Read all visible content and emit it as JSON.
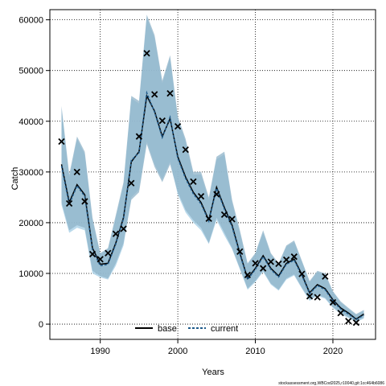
{
  "chart_data": {
    "type": "line",
    "title": "",
    "xlabel": "Years",
    "ylabel": "Catch",
    "xlim": [
      1983.5,
      2025.5
    ],
    "ylim": [
      -3000,
      62000
    ],
    "grid": true,
    "x_ticks": [
      1990,
      2000,
      2010,
      2020
    ],
    "y_ticks": [
      0,
      10000,
      20000,
      30000,
      40000,
      50000,
      60000
    ],
    "legend": {
      "position": "bottom-center",
      "entries": [
        "base",
        "current"
      ]
    },
    "colors": {
      "band": "#8fb3c8",
      "band_outer": "#a8cfe6",
      "base": "#000000",
      "current": "#1f5a8a",
      "observed": "#000000",
      "grid": "#000000"
    },
    "years": [
      1985,
      1986,
      1987,
      1988,
      1989,
      1990,
      1991,
      1992,
      1993,
      1994,
      1995,
      1996,
      1997,
      1998,
      1999,
      2000,
      2001,
      2002,
      2003,
      2004,
      2005,
      2006,
      2007,
      2008,
      2009,
      2010,
      2011,
      2012,
      2013,
      2014,
      2015,
      2016,
      2017,
      2018,
      2019,
      2020,
      2021,
      2022,
      2023,
      2024
    ],
    "series": [
      {
        "name": "base",
        "values": [
          31500,
          24000,
          27500,
          25500,
          15000,
          11800,
          12000,
          16000,
          21000,
          32000,
          34000,
          45000,
          42000,
          37000,
          40500,
          33000,
          29000,
          26000,
          24000,
          20500,
          27000,
          23000,
          19500,
          14000,
          9000,
          11000,
          13500,
          11000,
          9500,
          12000,
          12800,
          9800,
          6200,
          7800,
          7000,
          4800,
          3200,
          2200,
          1000,
          2000
        ],
        "lower": [
          24000,
          18500,
          19500,
          19000,
          10500,
          9500,
          9000,
          12000,
          16000,
          24500,
          26000,
          35500,
          31000,
          28000,
          31500,
          26000,
          22500,
          20500,
          19000,
          16000,
          21000,
          18000,
          15000,
          11000,
          7000,
          8500,
          10500,
          8000,
          6800,
          9000,
          9800,
          7200,
          4800,
          5800,
          5200,
          3400,
          2200,
          1400,
          500,
          1300
        ],
        "upper": [
          43000,
          29500,
          37000,
          34000,
          21000,
          14000,
          15000,
          21500,
          28000,
          45000,
          44000,
          61000,
          57000,
          48000,
          53000,
          41000,
          36500,
          30000,
          30000,
          25000,
          33000,
          34000,
          24500,
          18500,
          12000,
          14000,
          18500,
          14000,
          12000,
          15500,
          16500,
          12500,
          8500,
          10500,
          10000,
          6500,
          4500,
          3200,
          2000,
          2800
        ]
      },
      {
        "name": "current",
        "values": [
          31200,
          23600,
          27300,
          25200,
          14700,
          11500,
          11800,
          15800,
          20800,
          32300,
          33800,
          45600,
          41800,
          36800,
          40800,
          32700,
          28700,
          25700,
          23700,
          20300,
          26800,
          22700,
          19200,
          13800,
          8800,
          10800,
          13300,
          10800,
          9300,
          11800,
          12600,
          9600,
          6000,
          7600,
          6800,
          4600,
          3000,
          2000,
          900,
          1800
        ],
        "lower": [
          23500,
          18000,
          19000,
          18500,
          10000,
          9200,
          8800,
          11500,
          15500,
          25000,
          26500,
          36000,
          31500,
          28500,
          32000,
          25500,
          22000,
          20000,
          18500,
          15800,
          20500,
          17500,
          14800,
          10800,
          6800,
          8300,
          10300,
          7800,
          6600,
          8800,
          9600,
          7000,
          4600,
          5600,
          5000,
          3200,
          2000,
          1200,
          400,
          1100
        ],
        "upper": [
          42500,
          29000,
          36500,
          33500,
          20500,
          13800,
          14800,
          21000,
          27500,
          44500,
          43500,
          60500,
          56500,
          47500,
          52500,
          40500,
          36000,
          29500,
          29500,
          24500,
          32500,
          33500,
          24000,
          18000,
          11800,
          13800,
          18000,
          13800,
          11800,
          15300,
          16200,
          12300,
          8300,
          10300,
          9800,
          6300,
          4300,
          3000,
          1800,
          2600
        ]
      }
    ],
    "observed": {
      "name": "observed",
      "x": [
        1985,
        1986,
        1987,
        1988,
        1989,
        1990,
        1991,
        1992,
        1993,
        1994,
        1995,
        1996,
        1997,
        1998,
        1999,
        2000,
        2001,
        2002,
        2003,
        2004,
        2005,
        2006,
        2007,
        2008,
        2009,
        2010,
        2011,
        2012,
        2013,
        2014,
        2015,
        2016,
        2017,
        2018,
        2019,
        2020,
        2021,
        2022,
        2023
      ],
      "y": [
        36000,
        23800,
        30000,
        24200,
        13800,
        12800,
        14000,
        17800,
        18800,
        27800,
        37000,
        53400,
        45300,
        40100,
        45500,
        39000,
        34400,
        28100,
        25200,
        20800,
        25600,
        21600,
        20700,
        14300,
        9700,
        12000,
        11000,
        12300,
        11900,
        12700,
        13300,
        9900,
        5500,
        5300,
        9400,
        4300,
        2200,
        600,
        300
      ]
    },
    "footnote": "stockassessment.org,WBCod2025,r10040,git:1cc464b6086"
  }
}
